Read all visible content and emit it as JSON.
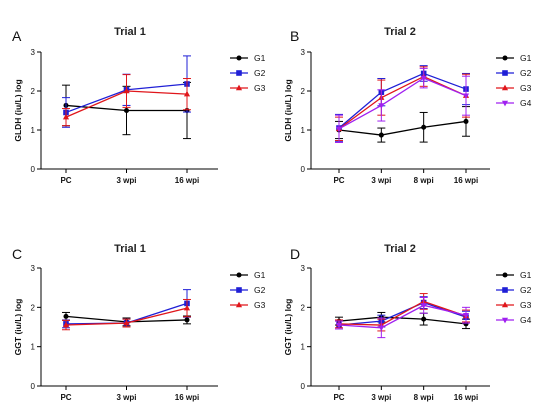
{
  "chart_data": [
    {
      "type": "line",
      "panel": "A",
      "title": "Trial 1",
      "ylabel": "GLDH (iu/L) log",
      "ylim": [
        0,
        3
      ],
      "yticks": [
        0,
        1,
        2,
        3
      ],
      "categories": [
        "PC",
        "3 wpi",
        "16 wpi"
      ],
      "legend_position": "right",
      "series": [
        {
          "name": "G1",
          "color": "#000000",
          "marker": "circle",
          "values": [
            1.63,
            1.5,
            1.5
          ],
          "errors": [
            0.52,
            0.62,
            0.72
          ]
        },
        {
          "name": "G2",
          "color": "#1f1fd6",
          "marker": "square",
          "values": [
            1.45,
            2.03,
            2.18
          ],
          "errors": [
            0.38,
            0.4,
            0.72
          ]
        },
        {
          "name": "G3",
          "color": "#e0161b",
          "marker": "triangle",
          "values": [
            1.33,
            2.0,
            1.92
          ],
          "errors": [
            0.22,
            0.42,
            0.4
          ]
        }
      ]
    },
    {
      "type": "line",
      "panel": "B",
      "title": "Trial 2",
      "ylabel": "GLDH (iu/L) log",
      "ylim": [
        0,
        3
      ],
      "yticks": [
        0,
        1,
        2,
        3
      ],
      "categories": [
        "PC",
        "3 wpi",
        "8 wpi",
        "16 wpi"
      ],
      "legend_position": "right",
      "series": [
        {
          "name": "G1",
          "color": "#000000",
          "marker": "circle",
          "values": [
            1.0,
            0.87,
            1.07,
            1.22
          ],
          "errors": [
            0.22,
            0.18,
            0.38,
            0.38
          ]
        },
        {
          "name": "G2",
          "color": "#1f1fd6",
          "marker": "square",
          "values": [
            1.05,
            1.97,
            2.45,
            2.05
          ],
          "errors": [
            0.35,
            0.35,
            0.2,
            0.4
          ]
        },
        {
          "name": "G3",
          "color": "#e0161b",
          "marker": "triangle",
          "values": [
            1.03,
            1.83,
            2.37,
            1.88
          ],
          "errors": [
            0.3,
            0.45,
            0.25,
            0.55
          ]
        },
        {
          "name": "G4",
          "color": "#a020f0",
          "marker": "triangle-down",
          "values": [
            1.03,
            1.63,
            2.33,
            1.88
          ],
          "errors": [
            0.35,
            0.4,
            0.25,
            0.5
          ]
        }
      ]
    },
    {
      "type": "line",
      "panel": "C",
      "title": "Trial 1",
      "ylabel": "GGT (iu/L) log",
      "ylim": [
        0,
        3
      ],
      "yticks": [
        0,
        1,
        2,
        3
      ],
      "categories": [
        "PC",
        "3 wpi",
        "16 wpi"
      ],
      "legend_position": "right",
      "series": [
        {
          "name": "G1",
          "color": "#000000",
          "marker": "circle",
          "values": [
            1.77,
            1.63,
            1.68
          ],
          "errors": [
            0.1,
            0.1,
            0.1
          ]
        },
        {
          "name": "G2",
          "color": "#1f1fd6",
          "marker": "square",
          "values": [
            1.58,
            1.6,
            2.1
          ],
          "errors": [
            0.1,
            0.1,
            0.35
          ]
        },
        {
          "name": "G3",
          "color": "#e0161b",
          "marker": "triangle",
          "values": [
            1.55,
            1.6,
            1.98
          ],
          "errors": [
            0.12,
            0.1,
            0.22
          ]
        }
      ]
    },
    {
      "type": "line",
      "panel": "D",
      "title": "Trial 2",
      "ylabel": "GGT (iu/L) log",
      "ylim": [
        0,
        3
      ],
      "yticks": [
        0,
        1,
        2,
        3
      ],
      "categories": [
        "PC",
        "3 wpi",
        "8 wpi",
        "16 wpi"
      ],
      "legend_position": "right",
      "series": [
        {
          "name": "G1",
          "color": "#000000",
          "marker": "circle",
          "values": [
            1.65,
            1.75,
            1.7,
            1.58
          ],
          "errors": [
            0.1,
            0.12,
            0.15,
            0.12
          ]
        },
        {
          "name": "G2",
          "color": "#1f1fd6",
          "marker": "square",
          "values": [
            1.55,
            1.65,
            2.12,
            1.75
          ],
          "errors": [
            0.1,
            0.15,
            0.15,
            0.15
          ]
        },
        {
          "name": "G3",
          "color": "#e0161b",
          "marker": "triangle",
          "values": [
            1.58,
            1.55,
            2.15,
            1.78
          ],
          "errors": [
            0.1,
            0.15,
            0.2,
            0.15
          ]
        },
        {
          "name": "G4",
          "color": "#a020f0",
          "marker": "triangle-down",
          "values": [
            1.55,
            1.48,
            2.05,
            1.8
          ],
          "errors": [
            0.1,
            0.25,
            0.2,
            0.2
          ]
        }
      ]
    }
  ]
}
